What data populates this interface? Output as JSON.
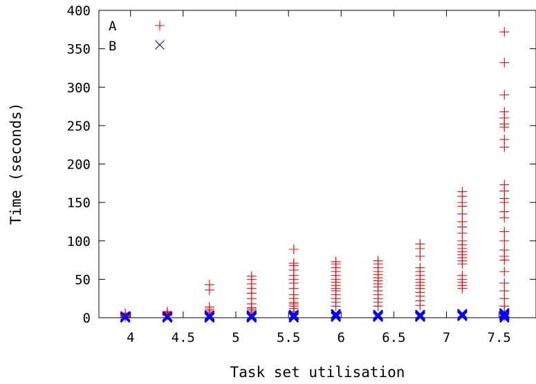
{
  "chart_data": {
    "type": "scatter",
    "title": "",
    "xlabel": "Task set utilisation",
    "ylabel": "Time (seconds)",
    "xlim": [
      3.7,
      7.85
    ],
    "ylim": [
      0,
      400
    ],
    "x_ticks": [
      4,
      4.5,
      5,
      5.5,
      6,
      6.5,
      7,
      7.5
    ],
    "x_tick_labels": [
      "4",
      "4.5",
      "5",
      "5.5",
      "6",
      "6.5",
      "7",
      "7.5"
    ],
    "y_ticks": [
      0,
      50,
      100,
      150,
      200,
      250,
      300,
      350,
      400
    ],
    "y_tick_labels": [
      "0",
      "50",
      "100",
      "150",
      "200",
      "250",
      "300",
      "350",
      "400"
    ],
    "grid": false,
    "legend_position": "top-left",
    "series": [
      {
        "name": "A",
        "marker": "plus",
        "color": "#ff0000",
        "points": [
          [
            3.95,
            1
          ],
          [
            3.95,
            2
          ],
          [
            3.95,
            3
          ],
          [
            3.95,
            4
          ],
          [
            3.95,
            5
          ],
          [
            3.95,
            6
          ],
          [
            4.35,
            3
          ],
          [
            4.35,
            4
          ],
          [
            4.35,
            5
          ],
          [
            4.35,
            6
          ],
          [
            4.35,
            7
          ],
          [
            4.35,
            8
          ],
          [
            4.75,
            5
          ],
          [
            4.75,
            7
          ],
          [
            4.75,
            9
          ],
          [
            4.75,
            11
          ],
          [
            4.75,
            14
          ],
          [
            4.75,
            36
          ],
          [
            4.75,
            43
          ],
          [
            5.15,
            7
          ],
          [
            5.15,
            9
          ],
          [
            5.15,
            11
          ],
          [
            5.15,
            13
          ],
          [
            5.15,
            18
          ],
          [
            5.15,
            25
          ],
          [
            5.15,
            32
          ],
          [
            5.15,
            38
          ],
          [
            5.15,
            44
          ],
          [
            5.15,
            50
          ],
          [
            5.15,
            54
          ],
          [
            5.55,
            8
          ],
          [
            5.55,
            12
          ],
          [
            5.55,
            15
          ],
          [
            5.55,
            18
          ],
          [
            5.55,
            20
          ],
          [
            5.55,
            25
          ],
          [
            5.55,
            30
          ],
          [
            5.55,
            38
          ],
          [
            5.55,
            45
          ],
          [
            5.55,
            50
          ],
          [
            5.55,
            55
          ],
          [
            5.55,
            62
          ],
          [
            5.55,
            68
          ],
          [
            5.55,
            71
          ],
          [
            5.55,
            89
          ],
          [
            5.95,
            15
          ],
          [
            5.95,
            20
          ],
          [
            5.95,
            25
          ],
          [
            5.95,
            30
          ],
          [
            5.95,
            35
          ],
          [
            5.95,
            38
          ],
          [
            5.95,
            42
          ],
          [
            5.95,
            46
          ],
          [
            5.95,
            50
          ],
          [
            5.95,
            55
          ],
          [
            5.95,
            60
          ],
          [
            5.95,
            65
          ],
          [
            5.95,
            70
          ],
          [
            5.95,
            73
          ],
          [
            6.35,
            15
          ],
          [
            6.35,
            20
          ],
          [
            6.35,
            25
          ],
          [
            6.35,
            30
          ],
          [
            6.35,
            35
          ],
          [
            6.35,
            40
          ],
          [
            6.35,
            44
          ],
          [
            6.35,
            48
          ],
          [
            6.35,
            52
          ],
          [
            6.35,
            56
          ],
          [
            6.35,
            60
          ],
          [
            6.35,
            65
          ],
          [
            6.35,
            70
          ],
          [
            6.35,
            74
          ],
          [
            6.75,
            16
          ],
          [
            6.75,
            22
          ],
          [
            6.75,
            28
          ],
          [
            6.75,
            33
          ],
          [
            6.75,
            38
          ],
          [
            6.75,
            42
          ],
          [
            6.75,
            46
          ],
          [
            6.75,
            50
          ],
          [
            6.75,
            55
          ],
          [
            6.75,
            60
          ],
          [
            6.75,
            65
          ],
          [
            6.75,
            80
          ],
          [
            6.75,
            90
          ],
          [
            6.75,
            96
          ],
          [
            7.15,
            38
          ],
          [
            7.15,
            42
          ],
          [
            7.15,
            46
          ],
          [
            7.15,
            50
          ],
          [
            7.15,
            55
          ],
          [
            7.15,
            70
          ],
          [
            7.15,
            74
          ],
          [
            7.15,
            78
          ],
          [
            7.15,
            82
          ],
          [
            7.15,
            86
          ],
          [
            7.15,
            90
          ],
          [
            7.15,
            95
          ],
          [
            7.15,
            100
          ],
          [
            7.15,
            110
          ],
          [
            7.15,
            118
          ],
          [
            7.15,
            125
          ],
          [
            7.15,
            135
          ],
          [
            7.15,
            145
          ],
          [
            7.15,
            150
          ],
          [
            7.15,
            158
          ],
          [
            7.15,
            164
          ],
          [
            7.55,
            2
          ],
          [
            7.55,
            5
          ],
          [
            7.55,
            8
          ],
          [
            7.55,
            15
          ],
          [
            7.55,
            25
          ],
          [
            7.55,
            35
          ],
          [
            7.55,
            45
          ],
          [
            7.55,
            60
          ],
          [
            7.55,
            75
          ],
          [
            7.55,
            80
          ],
          [
            7.55,
            88
          ],
          [
            7.55,
            100
          ],
          [
            7.55,
            112
          ],
          [
            7.55,
            130
          ],
          [
            7.55,
            138
          ],
          [
            7.55,
            150
          ],
          [
            7.55,
            155
          ],
          [
            7.55,
            165
          ],
          [
            7.55,
            173
          ],
          [
            7.55,
            222
          ],
          [
            7.55,
            232
          ],
          [
            7.55,
            248
          ],
          [
            7.55,
            252
          ],
          [
            7.55,
            260
          ],
          [
            7.55,
            268
          ],
          [
            7.55,
            290
          ],
          [
            7.55,
            332
          ],
          [
            7.55,
            372
          ]
        ]
      },
      {
        "name": "B",
        "marker": "cross",
        "color": "#0000ff",
        "points": [
          [
            3.95,
            0
          ],
          [
            3.95,
            1
          ],
          [
            3.95,
            2
          ],
          [
            4.35,
            0
          ],
          [
            4.35,
            1
          ],
          [
            4.35,
            2
          ],
          [
            4.75,
            0
          ],
          [
            4.75,
            1
          ],
          [
            4.75,
            2
          ],
          [
            4.75,
            3
          ],
          [
            5.15,
            0
          ],
          [
            5.15,
            1
          ],
          [
            5.15,
            2
          ],
          [
            5.15,
            3
          ],
          [
            5.55,
            0
          ],
          [
            5.55,
            2
          ],
          [
            5.55,
            3
          ],
          [
            5.55,
            4
          ],
          [
            5.95,
            1
          ],
          [
            5.95,
            2
          ],
          [
            5.95,
            4
          ],
          [
            5.95,
            5
          ],
          [
            6.35,
            1
          ],
          [
            6.35,
            2
          ],
          [
            6.35,
            3
          ],
          [
            6.35,
            4
          ],
          [
            6.75,
            1
          ],
          [
            6.75,
            2
          ],
          [
            6.75,
            3
          ],
          [
            6.75,
            4
          ],
          [
            7.15,
            2
          ],
          [
            7.15,
            3
          ],
          [
            7.15,
            4
          ],
          [
            7.15,
            5
          ],
          [
            7.55,
            0
          ],
          [
            7.55,
            2
          ],
          [
            7.55,
            3
          ],
          [
            7.55,
            4
          ],
          [
            7.55,
            5
          ],
          [
            7.55,
            6
          ]
        ]
      }
    ]
  }
}
